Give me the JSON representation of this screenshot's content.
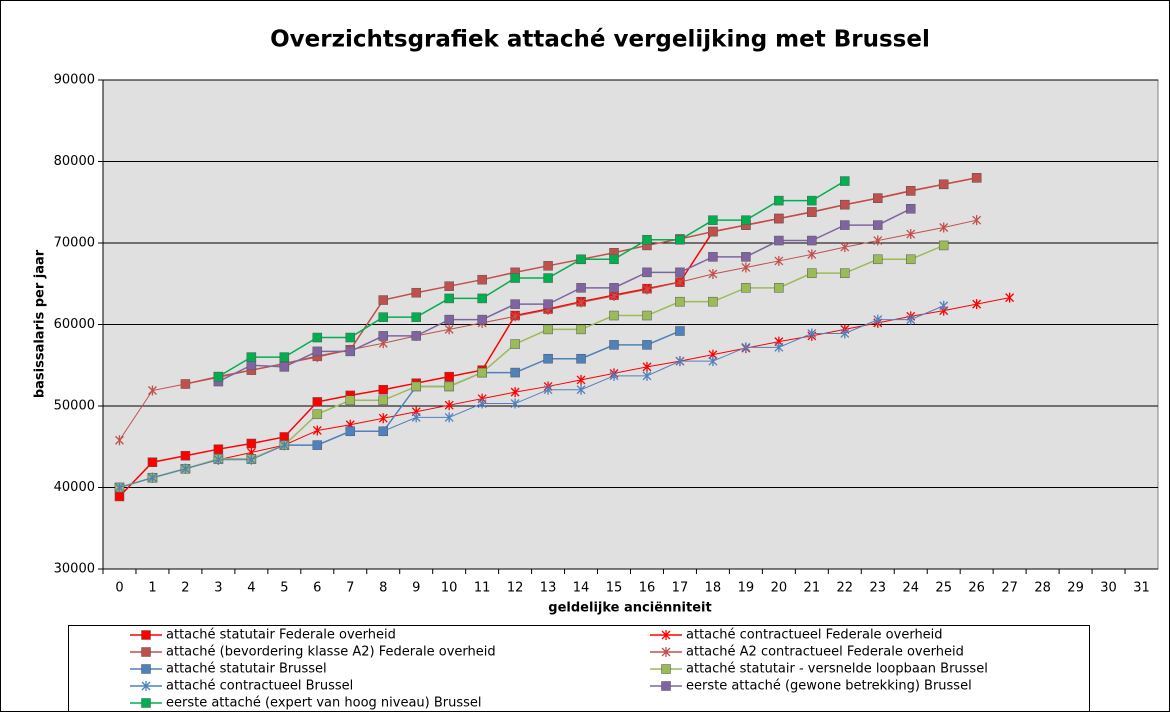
{
  "chart_data": {
    "type": "line",
    "title": "Overzichtsgrafiek attaché vergelijking met Brussel",
    "x_label": "geldelijke anciënniteit",
    "y_label": "basissalaris per jaar",
    "categories": [
      "0",
      "1",
      "2",
      "3",
      "4",
      "5",
      "6",
      "7",
      "8",
      "9",
      "10",
      "11",
      "12",
      "13",
      "14",
      "15",
      "16",
      "17",
      "18",
      "19",
      "20",
      "21",
      "22",
      "23",
      "24",
      "25",
      "26",
      "27",
      "28",
      "29",
      "30",
      "31"
    ],
    "ylim": [
      30000,
      90000
    ],
    "yticks": [
      30000,
      40000,
      50000,
      60000,
      70000,
      80000,
      90000
    ],
    "grid": true,
    "legend": "bottom",
    "series": [
      {
        "name": "attaché statutair Federale overheid",
        "color": "#ff0000",
        "marker": "square",
        "values": [
          38900,
          43100,
          43900,
          44700,
          45400,
          46200,
          50500,
          51300,
          52000,
          52800,
          53600,
          54400,
          61100,
          61900,
          62800,
          63600,
          64400,
          65200,
          71400,
          72200,
          73000,
          73800,
          74700,
          75500,
          76400,
          77200,
          78000,
          null,
          null,
          null,
          null,
          null
        ]
      },
      {
        "name": "attaché contractueel Federale overheid",
        "color": "#ff0000",
        "marker": "star",
        "values": [
          40000,
          41200,
          42300,
          43400,
          44300,
          45200,
          47000,
          47700,
          48500,
          49300,
          50100,
          50900,
          51700,
          52400,
          53200,
          54000,
          54800,
          55500,
          56300,
          57100,
          57900,
          58600,
          59400,
          60200,
          61000,
          61700,
          62500,
          63300,
          null,
          null,
          null,
          null
        ]
      },
      {
        "name": "attaché (bevordering klasse A2) Federale overheid",
        "color": "#c0504d",
        "marker": "square",
        "values": [
          null,
          null,
          52700,
          53600,
          54400,
          55200,
          56100,
          56900,
          63000,
          63900,
          64700,
          65500,
          66400,
          67200,
          68000,
          68800,
          69700,
          70500,
          71400,
          72200,
          73000,
          73800,
          74700,
          75500,
          76400,
          77200,
          78000,
          null,
          null,
          null,
          null,
          null
        ]
      },
      {
        "name": "attaché A2 contractueel Federale overheid",
        "color": "#c0504d",
        "marker": "star",
        "values": [
          45800,
          51900,
          52700,
          53500,
          54400,
          55200,
          56000,
          56900,
          57700,
          58600,
          59400,
          60200,
          61000,
          61800,
          62700,
          63500,
          64300,
          65200,
          66200,
          67000,
          67800,
          68600,
          69500,
          70300,
          71100,
          71900,
          72800,
          null,
          null,
          null,
          null,
          null
        ]
      },
      {
        "name": "attaché statutair Brussel",
        "color": "#4f81bd",
        "marker": "square",
        "values": [
          40000,
          41200,
          42300,
          43500,
          43500,
          45200,
          45200,
          46900,
          46900,
          52400,
          52400,
          54100,
          54100,
          55800,
          55800,
          57500,
          57500,
          59200,
          null,
          null,
          null,
          null,
          null,
          null,
          null,
          null,
          null,
          null,
          null,
          null,
          null,
          null
        ]
      },
      {
        "name": "attaché statutair - versnelde loopbaan Brussel",
        "color": "#9bbb59",
        "marker": "square",
        "values": [
          40000,
          41200,
          42300,
          43500,
          43500,
          45200,
          49000,
          50700,
          50700,
          52400,
          52400,
          54100,
          57600,
          59400,
          59400,
          61100,
          61100,
          62800,
          62800,
          64500,
          64500,
          66300,
          66300,
          68000,
          68000,
          69700,
          null,
          null,
          null,
          null,
          null,
          null
        ]
      },
      {
        "name": "attaché contractueel Brussel",
        "color": "#4f81bd",
        "marker": "star",
        "values": [
          40000,
          41200,
          42300,
          43400,
          43400,
          45200,
          45200,
          46900,
          46900,
          48600,
          48600,
          50300,
          50300,
          52000,
          52000,
          53700,
          53700,
          55500,
          55500,
          57200,
          57200,
          58900,
          58900,
          60600,
          60600,
          62300,
          null,
          null,
          null,
          null,
          null,
          null
        ]
      },
      {
        "name": "eerste attaché (gewone betrekking) Brussel",
        "color": "#8064a2",
        "marker": "square",
        "values": [
          null,
          null,
          null,
          53000,
          55000,
          54800,
          56700,
          56700,
          58600,
          58600,
          60600,
          60600,
          62500,
          62500,
          64500,
          64500,
          66400,
          66400,
          68300,
          68300,
          70300,
          70300,
          72200,
          72200,
          74200,
          null,
          null,
          null,
          null,
          null,
          null,
          null
        ]
      },
      {
        "name": "eerste attaché (expert van hoog niveau) Brussel",
        "color": "#00b050",
        "marker": "square",
        "values": [
          null,
          null,
          null,
          53600,
          56000,
          56000,
          58400,
          58400,
          60900,
          60900,
          63200,
          63200,
          65700,
          65700,
          68000,
          68000,
          70400,
          70400,
          72800,
          72800,
          75200,
          75200,
          77600,
          null,
          null,
          null,
          null,
          null,
          null,
          null,
          null,
          null
        ]
      }
    ]
  }
}
